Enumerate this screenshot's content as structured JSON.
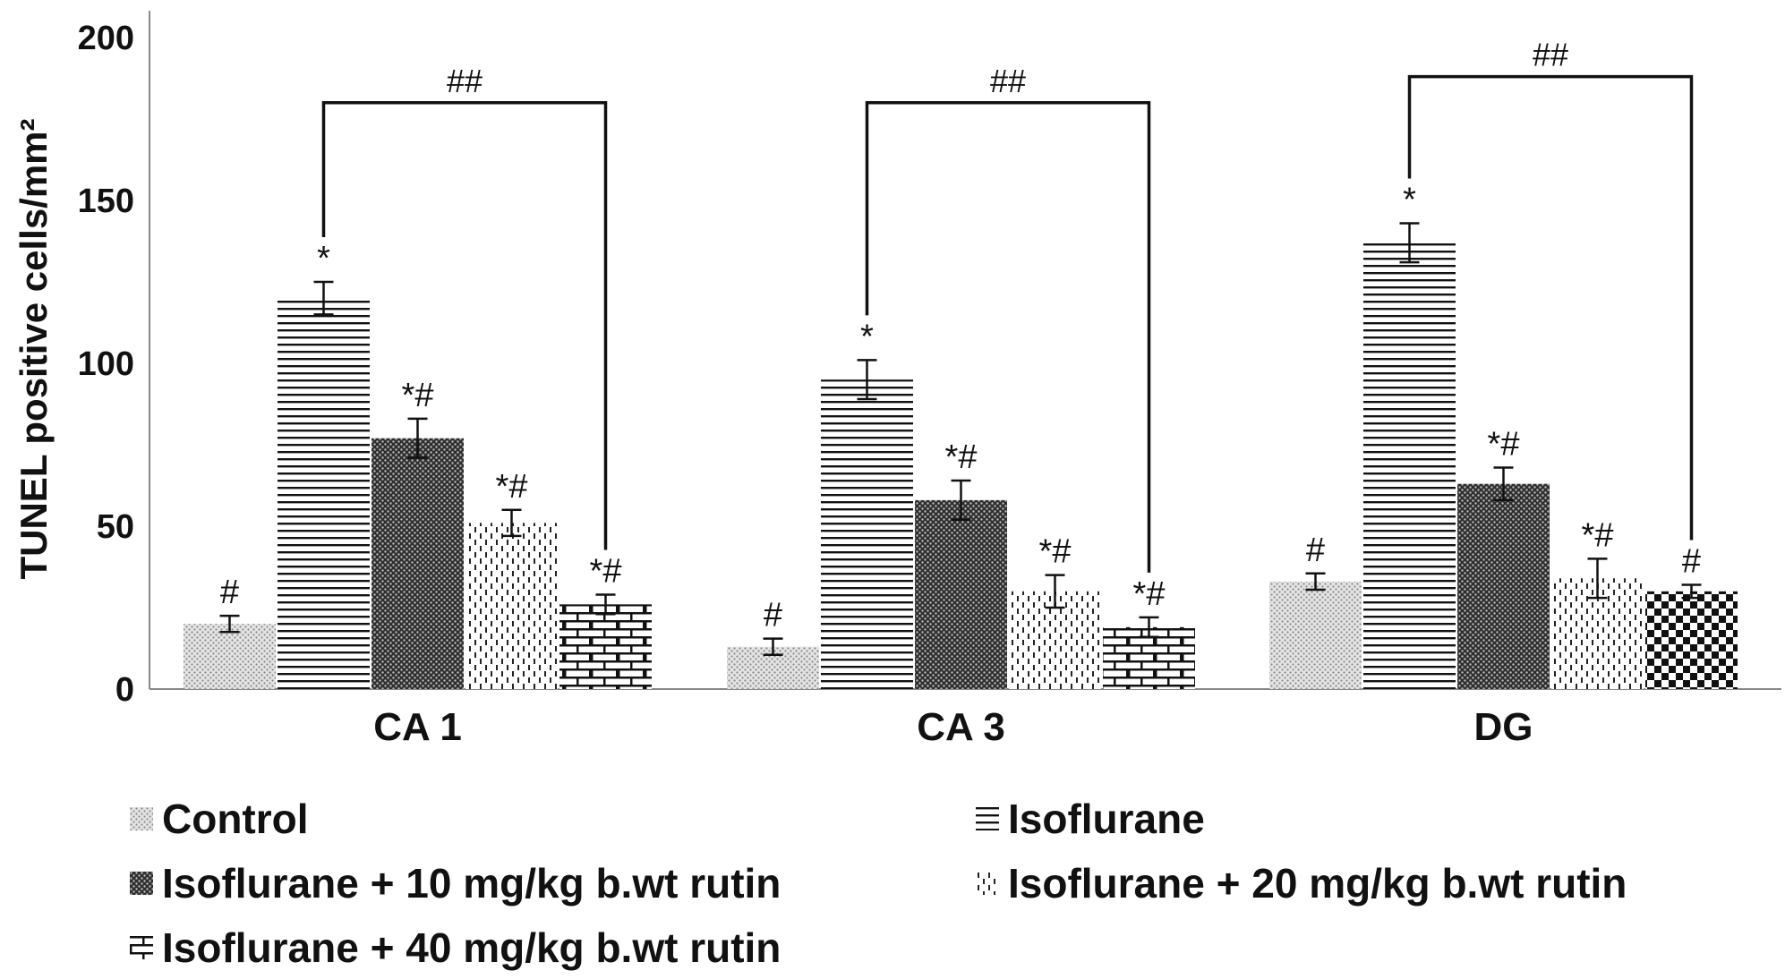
{
  "chart_data": {
    "type": "bar",
    "categories": [
      "CA 1",
      "CA 3",
      "DG"
    ],
    "ylabel": "TUNEL positive cells/mm²",
    "ylim": [
      0,
      200
    ],
    "yticks": [
      "0",
      "50",
      "100",
      "150",
      "200"
    ],
    "grid": false,
    "legend_position": "bottom",
    "series": [
      {
        "name": "Control",
        "values": [
          20,
          13,
          33
        ],
        "errors": [
          2.5,
          2.5,
          2.5
        ],
        "annotations": [
          "#",
          "#",
          "#"
        ],
        "pattern": "dots-light"
      },
      {
        "name": "Isoflurane",
        "values": [
          120,
          95,
          137
        ],
        "errors": [
          5,
          6,
          6
        ],
        "annotations": [
          "*",
          "*",
          "*"
        ],
        "pattern": "horizontal-lines"
      },
      {
        "name": "Isoflurane + 10 mg/kg b.wt rutin",
        "values": [
          77,
          58,
          63
        ],
        "errors": [
          6,
          6,
          5
        ],
        "annotations": [
          "*#",
          "*#",
          "*#"
        ],
        "pattern": "dots-dark"
      },
      {
        "name": "Isoflurane + 20 mg/kg b.wt rutin",
        "values": [
          51,
          30,
          34
        ],
        "errors": [
          4,
          5,
          6
        ],
        "annotations": [
          "*#",
          "*#",
          "*#"
        ],
        "pattern": "vertical-dashes"
      },
      {
        "name": "Isoflurane + 40 mg/kg b.wt rutin",
        "values": [
          26,
          19,
          30
        ],
        "errors": [
          3,
          3,
          2
        ],
        "annotations": [
          "*#",
          "*#",
          "#"
        ],
        "pattern": [
          "bricks",
          "bricks",
          "checker"
        ]
      }
    ],
    "brackets": [
      {
        "category": "CA 1",
        "from_series": 1,
        "to_series": 4,
        "label": "##",
        "level": 180
      },
      {
        "category": "CA 3",
        "from_series": 1,
        "to_series": 4,
        "label": "##",
        "level": 180
      },
      {
        "category": "DG",
        "from_series": 1,
        "to_series": 4,
        "label": "##",
        "level": 188
      }
    ]
  },
  "legend": {
    "items": [
      "Control",
      "Isoflurane",
      "Isoflurane + 10 mg/kg b.wt rutin",
      "Isoflurane + 20 mg/kg b.wt rutin",
      "Isoflurane + 40 mg/kg b.wt rutin"
    ]
  }
}
